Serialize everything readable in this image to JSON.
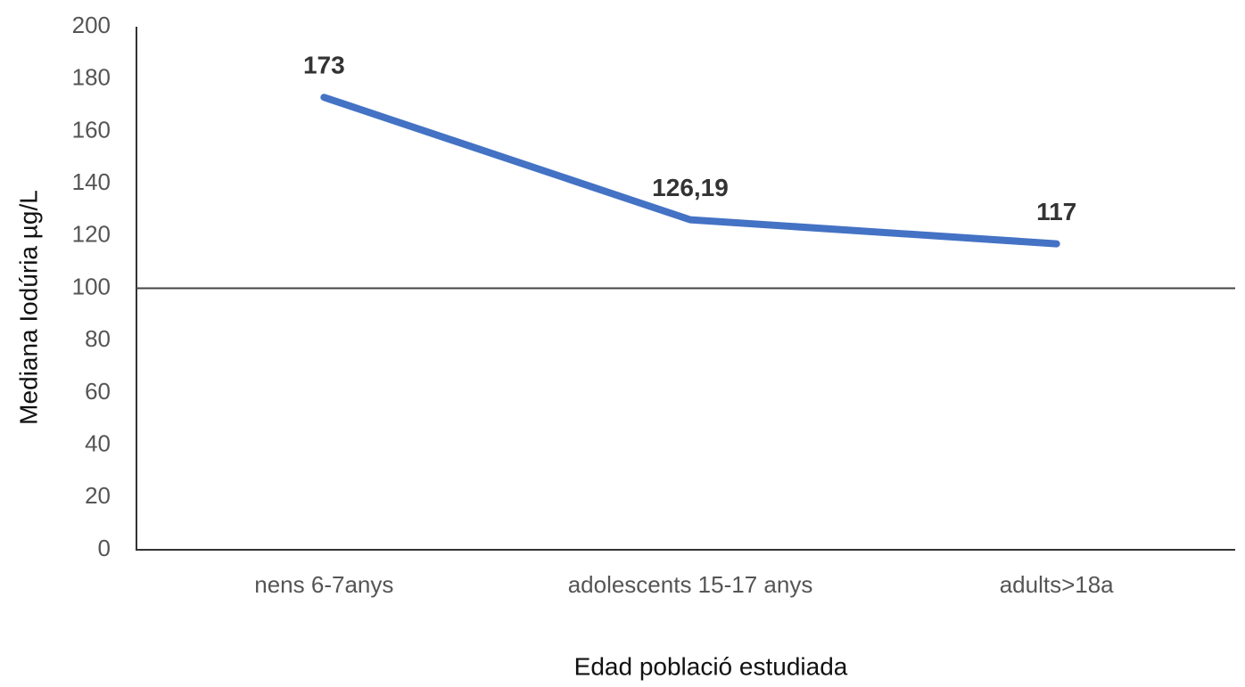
{
  "chart_data": {
    "type": "line",
    "categories": [
      "nens 6-7anys",
      "adolescents 15-17 anys",
      "adults>18a"
    ],
    "series": [
      {
        "name": "Mediana Iodúria",
        "color": "#4472c4",
        "values": [
          173,
          126.19,
          117
        ],
        "value_labels": [
          "173",
          "126,19",
          "117"
        ]
      }
    ],
    "ylim": [
      0,
      200
    ],
    "yticks": [
      0,
      20,
      40,
      60,
      80,
      100,
      120,
      140,
      160,
      180,
      200
    ],
    "reference_line": 100,
    "xlabel": "Edad població estudiada",
    "ylabel": "Mediana Iodúria µg/L",
    "grid": false
  }
}
